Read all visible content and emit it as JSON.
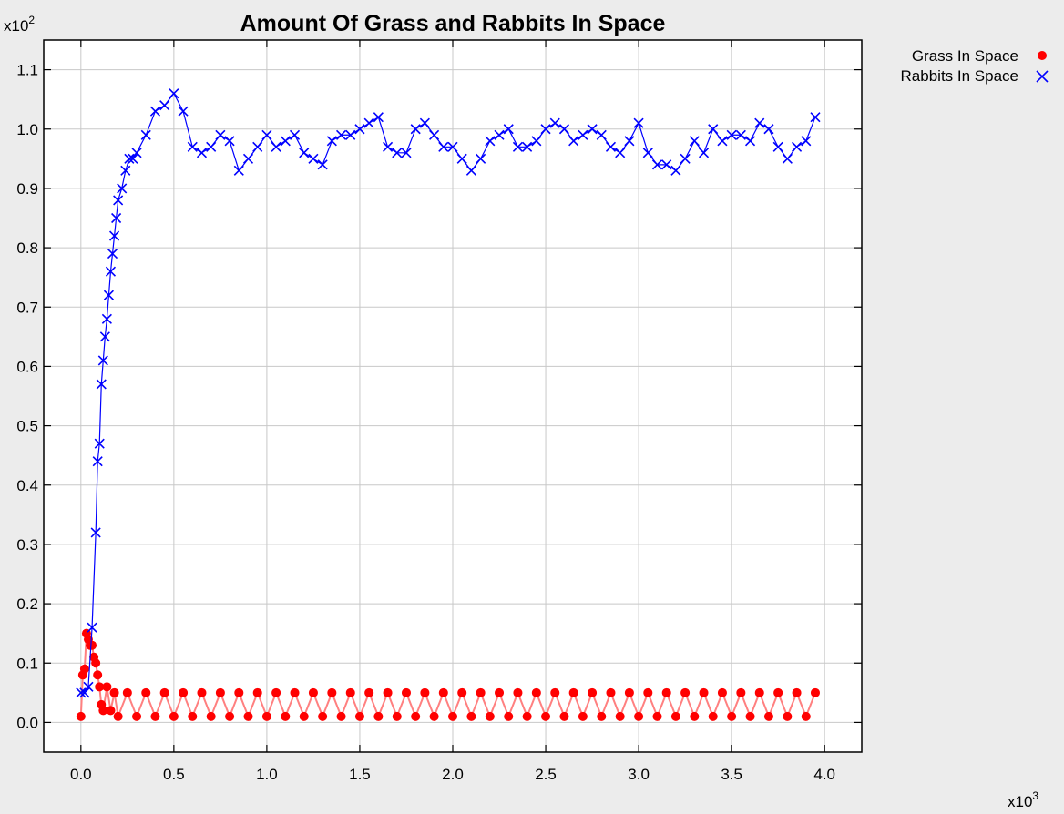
{
  "chart_data": {
    "type": "scatter",
    "title": "Amount Of Grass and Rabbits In Space",
    "xlabel": "",
    "ylabel": "",
    "x_multiplier": "x10",
    "x_multiplier_exp": "3",
    "y_multiplier": "x10",
    "y_multiplier_exp": "2",
    "xlim": [
      -0.2,
      4.2
    ],
    "ylim": [
      -0.05,
      1.15
    ],
    "x_ticks": [
      "0.0",
      "0.5",
      "1.0",
      "1.5",
      "2.0",
      "2.5",
      "3.0",
      "3.5",
      "4.0"
    ],
    "y_ticks": [
      "0.0",
      "0.1",
      "0.2",
      "0.3",
      "0.4",
      "0.5",
      "0.6",
      "0.7",
      "0.8",
      "0.9",
      "1.0",
      "1.1"
    ],
    "grid": true,
    "legend_position": "top-right, outside plot",
    "series": [
      {
        "name": "Grass In Space",
        "marker": "circle",
        "color": "#ff0000",
        "line_color": "#ff8080",
        "x": [
          0.0,
          0.01,
          0.02,
          0.03,
          0.04,
          0.05,
          0.06,
          0.07,
          0.08,
          0.09,
          0.1,
          0.11,
          0.12,
          0.14,
          0.16,
          0.18,
          0.2,
          0.25,
          0.3,
          0.35,
          0.4,
          0.45,
          0.5,
          0.55,
          0.6,
          0.65,
          0.7,
          0.75,
          0.8,
          0.85,
          0.9,
          0.95,
          1.0,
          1.05,
          1.1,
          1.15,
          1.2,
          1.25,
          1.3,
          1.35,
          1.4,
          1.45,
          1.5,
          1.55,
          1.6,
          1.65,
          1.7,
          1.75,
          1.8,
          1.85,
          1.9,
          1.95,
          2.0,
          2.05,
          2.1,
          2.15,
          2.2,
          2.25,
          2.3,
          2.35,
          2.4,
          2.45,
          2.5,
          2.55,
          2.6,
          2.65,
          2.7,
          2.75,
          2.8,
          2.85,
          2.9,
          2.95,
          3.0,
          3.05,
          3.1,
          3.15,
          3.2,
          3.25,
          3.3,
          3.35,
          3.4,
          3.45,
          3.5,
          3.55,
          3.6,
          3.65,
          3.7,
          3.75,
          3.8,
          3.85,
          3.9,
          3.95
        ],
        "values": [
          0.01,
          0.08,
          0.09,
          0.15,
          0.14,
          0.13,
          0.13,
          0.11,
          0.1,
          0.08,
          0.06,
          0.03,
          0.02,
          0.06,
          0.02,
          0.05,
          0.01,
          0.05,
          0.01,
          0.05,
          0.01,
          0.05,
          0.01,
          0.05,
          0.01,
          0.05,
          0.01,
          0.05,
          0.01,
          0.05,
          0.01,
          0.05,
          0.01,
          0.05,
          0.01,
          0.05,
          0.01,
          0.05,
          0.01,
          0.05,
          0.01,
          0.05,
          0.01,
          0.05,
          0.01,
          0.05,
          0.01,
          0.05,
          0.01,
          0.05,
          0.01,
          0.05,
          0.01,
          0.05,
          0.01,
          0.05,
          0.01,
          0.05,
          0.01,
          0.05,
          0.01,
          0.05,
          0.01,
          0.05,
          0.01,
          0.05,
          0.01,
          0.05,
          0.01,
          0.05,
          0.01,
          0.05,
          0.01,
          0.05,
          0.01,
          0.05,
          0.01,
          0.05,
          0.01,
          0.05,
          0.01,
          0.05,
          0.01,
          0.05,
          0.01,
          0.05,
          0.01,
          0.05,
          0.01,
          0.05,
          0.01,
          0.05
        ]
      },
      {
        "name": "Rabbits In Space",
        "marker": "x",
        "color": "#0000ff",
        "line_color": "#0000ff",
        "x": [
          0.0,
          0.02,
          0.04,
          0.06,
          0.08,
          0.09,
          0.1,
          0.11,
          0.12,
          0.13,
          0.14,
          0.15,
          0.16,
          0.17,
          0.18,
          0.19,
          0.2,
          0.22,
          0.24,
          0.26,
          0.28,
          0.3,
          0.35,
          0.4,
          0.45,
          0.5,
          0.55,
          0.6,
          0.65,
          0.7,
          0.75,
          0.8,
          0.85,
          0.9,
          0.95,
          1.0,
          1.05,
          1.1,
          1.15,
          1.2,
          1.25,
          1.3,
          1.35,
          1.4,
          1.45,
          1.5,
          1.55,
          1.6,
          1.65,
          1.7,
          1.75,
          1.8,
          1.85,
          1.9,
          1.95,
          2.0,
          2.05,
          2.1,
          2.15,
          2.2,
          2.25,
          2.3,
          2.35,
          2.4,
          2.45,
          2.5,
          2.55,
          2.6,
          2.65,
          2.7,
          2.75,
          2.8,
          2.85,
          2.9,
          2.95,
          3.0,
          3.05,
          3.1,
          3.15,
          3.2,
          3.25,
          3.3,
          3.35,
          3.4,
          3.45,
          3.5,
          3.55,
          3.6,
          3.65,
          3.7,
          3.75,
          3.8,
          3.85,
          3.9,
          3.95
        ],
        "values": [
          0.05,
          0.05,
          0.06,
          0.16,
          0.32,
          0.44,
          0.47,
          0.57,
          0.61,
          0.65,
          0.68,
          0.72,
          0.76,
          0.79,
          0.82,
          0.85,
          0.88,
          0.9,
          0.93,
          0.95,
          0.95,
          0.96,
          0.99,
          1.03,
          1.04,
          1.06,
          1.03,
          0.97,
          0.96,
          0.97,
          0.99,
          0.98,
          0.93,
          0.95,
          0.97,
          0.99,
          0.97,
          0.98,
          0.99,
          0.96,
          0.95,
          0.94,
          0.98,
          0.99,
          0.99,
          1.0,
          1.01,
          1.02,
          0.97,
          0.96,
          0.96,
          1.0,
          1.01,
          0.99,
          0.97,
          0.97,
          0.95,
          0.93,
          0.95,
          0.98,
          0.99,
          1.0,
          0.97,
          0.97,
          0.98,
          1.0,
          1.01,
          1.0,
          0.98,
          0.99,
          1.0,
          0.99,
          0.97,
          0.96,
          0.98,
          1.01,
          0.96,
          0.94,
          0.94,
          0.93,
          0.95,
          0.98,
          0.96,
          1.0,
          0.98,
          0.99,
          0.99,
          0.98,
          1.01,
          1.0,
          0.97,
          0.95,
          0.97,
          0.98,
          1.02
        ]
      }
    ]
  }
}
